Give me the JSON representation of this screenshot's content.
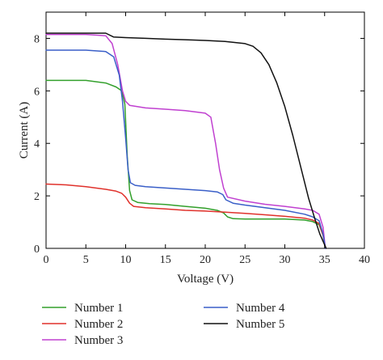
{
  "chart_data": {
    "type": "line",
    "title": "",
    "xlabel": "Voltage (V)",
    "ylabel": "Current (A)",
    "xlim": [
      0,
      40
    ],
    "ylim": [
      0,
      9
    ],
    "xticks": [
      0,
      5,
      10,
      15,
      20,
      25,
      30,
      35,
      40
    ],
    "yticks": [
      0,
      2,
      4,
      6,
      8
    ],
    "grid": false,
    "legend_position": "bottom",
    "series": [
      {
        "name": "Number 1",
        "color": "#33a02c",
        "x": [
          0,
          2.5,
          5,
          7.5,
          8.8,
          9.5,
          9.9,
          10.2,
          10.5,
          10.8,
          11.5,
          13,
          15,
          17.5,
          20,
          21.5,
          22.3,
          22.8,
          23.5,
          25,
          27.5,
          30,
          32.5,
          33.5,
          34.3,
          34.8,
          35.1
        ],
        "y": [
          6.4,
          6.4,
          6.4,
          6.3,
          6.15,
          6.0,
          5.5,
          3.5,
          2.2,
          1.85,
          1.75,
          1.7,
          1.67,
          1.6,
          1.53,
          1.45,
          1.35,
          1.2,
          1.13,
          1.12,
          1.12,
          1.12,
          1.08,
          1.02,
          0.9,
          0.5,
          0.0
        ]
      },
      {
        "name": "Number 2",
        "color": "#e0312b",
        "x": [
          0,
          2.5,
          5,
          7.5,
          8.8,
          9.5,
          10,
          10.5,
          11,
          12.5,
          15,
          17.5,
          20,
          22.5,
          25,
          27.5,
          30,
          32.5,
          33.5,
          34.3,
          34.8,
          35.1
        ],
        "y": [
          2.45,
          2.42,
          2.35,
          2.25,
          2.18,
          2.1,
          1.95,
          1.72,
          1.6,
          1.55,
          1.5,
          1.45,
          1.42,
          1.38,
          1.33,
          1.28,
          1.22,
          1.15,
          1.08,
          0.95,
          0.5,
          0.0
        ]
      },
      {
        "name": "Number 3",
        "color": "#c040d0",
        "x": [
          0,
          2.5,
          5,
          7.5,
          8.3,
          9,
          9.6,
          10,
          10.5,
          12.5,
          15,
          17.5,
          20,
          20.7,
          21.3,
          21.8,
          22.3,
          22.8,
          25,
          27.5,
          30,
          32.5,
          33.5,
          34.3,
          34.8,
          35.1
        ],
        "y": [
          8.15,
          8.15,
          8.15,
          8.1,
          7.8,
          7.0,
          6.0,
          5.6,
          5.45,
          5.35,
          5.3,
          5.25,
          5.15,
          5.0,
          4.0,
          3.0,
          2.3,
          1.95,
          1.8,
          1.68,
          1.6,
          1.5,
          1.45,
          1.3,
          0.8,
          0.0
        ]
      },
      {
        "name": "Number 4",
        "color": "#3a5fc8",
        "x": [
          0,
          2.5,
          5,
          7.5,
          8.5,
          9.2,
          9.6,
          10,
          10.3,
          10.6,
          11.2,
          12.5,
          15,
          17.5,
          20,
          21.5,
          22.2,
          22.6,
          23.5,
          25,
          27.5,
          30,
          32.5,
          33.5,
          34.3,
          34.8,
          35.1
        ],
        "y": [
          7.55,
          7.55,
          7.55,
          7.5,
          7.3,
          6.6,
          5.6,
          4.2,
          3.0,
          2.5,
          2.4,
          2.35,
          2.3,
          2.25,
          2.2,
          2.15,
          2.05,
          1.85,
          1.72,
          1.65,
          1.55,
          1.45,
          1.3,
          1.2,
          1.05,
          0.55,
          0.0
        ]
      },
      {
        "name": "Number 5",
        "color": "#111111",
        "x": [
          0,
          2.5,
          5,
          7.5,
          8.5,
          10,
          12.5,
          15,
          17.5,
          20,
          22.5,
          25,
          26,
          27,
          28,
          29,
          30,
          31,
          32,
          33,
          33.8,
          34.4,
          34.9,
          35.2
        ],
        "y": [
          8.2,
          8.2,
          8.2,
          8.2,
          8.05,
          8.03,
          8.0,
          7.97,
          7.95,
          7.92,
          7.88,
          7.8,
          7.7,
          7.45,
          7.0,
          6.3,
          5.4,
          4.3,
          3.1,
          1.9,
          1.1,
          0.55,
          0.2,
          0.0
        ]
      }
    ]
  }
}
